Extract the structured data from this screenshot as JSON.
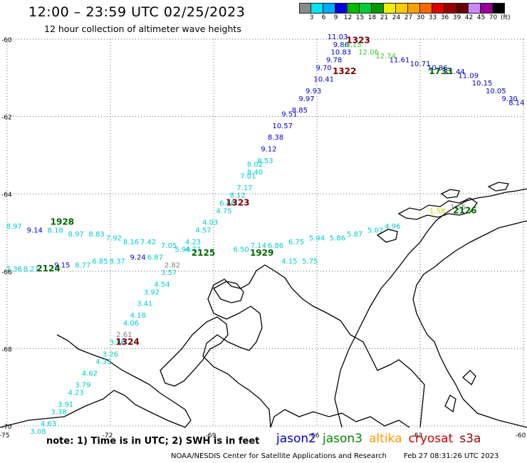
{
  "title": "12:00 – 23:59 UTC 02/25/2023",
  "subtitle": "12 hour collection of altimeter wave heights",
  "colorbar": {
    "labels": [
      "3",
      "6",
      "9",
      "12",
      "15",
      "18",
      "21",
      "24",
      "27",
      "30",
      "33",
      "36",
      "39",
      "42",
      "45",
      "70"
    ],
    "unit": "(ft)",
    "colors": [
      "#8a8a8a",
      "#00e5ee",
      "#00aaff",
      "#0000dd",
      "#00bb00",
      "#00cc33",
      "#009900",
      "#eeee00",
      "#ffcc00",
      "#ffa000",
      "#ff6600",
      "#dd0000",
      "#990000",
      "#660000",
      "#cc88ff",
      "#990099",
      "#000000"
    ]
  },
  "axes": {
    "lon_labels": [
      "-75",
      "-72",
      "-69",
      "-66",
      "-63",
      "-60"
    ],
    "lat_labels": [
      "-60",
      "-62",
      "-64",
      "-66",
      "-68",
      "-70"
    ],
    "lon_range": [
      -75,
      -60
    ],
    "lat_range": [
      -70,
      -60
    ]
  },
  "passes": [
    {
      "label": "1323",
      "color": "#7a0000",
      "lon": -64.8,
      "lat": -60.1
    },
    {
      "label": "1322",
      "color": "#7a0000",
      "lon": -65.2,
      "lat": -60.9
    },
    {
      "label": "1733",
      "color": "#006600",
      "lon": -62.4,
      "lat": -60.9
    },
    {
      "label": "1323",
      "color": "#7a0000",
      "lon": -68.3,
      "lat": -64.3
    },
    {
      "label": "2126",
      "color": "#006600",
      "lon": -61.7,
      "lat": -64.5
    },
    {
      "label": "1928",
      "color": "#006600",
      "lon": -73.4,
      "lat": -64.8
    },
    {
      "label": "2125",
      "color": "#006600",
      "lon": -69.3,
      "lat": -65.6
    },
    {
      "label": "1929",
      "color": "#006600",
      "lon": -67.6,
      "lat": -65.6
    },
    {
      "label": "2124",
      "color": "#006600",
      "lon": -73.8,
      "lat": -66.0
    },
    {
      "label": "1324",
      "color": "#7a0000",
      "lon": -71.5,
      "lat": -67.9
    }
  ],
  "wave_heights": [
    {
      "v": "11.03",
      "c": "#0000cc",
      "lon": -65.4,
      "lat": -60.0
    },
    {
      "v": "9.86",
      "c": "#0000cc",
      "lon": -65.3,
      "lat": -60.2
    },
    {
      "v": "10.83",
      "c": "#0000cc",
      "lon": -65.3,
      "lat": -60.4
    },
    {
      "v": "9.78",
      "c": "#0000cc",
      "lon": -65.5,
      "lat": -60.6
    },
    {
      "v": "9.70",
      "c": "#0000cc",
      "lon": -65.8,
      "lat": -60.8
    },
    {
      "v": "10.41",
      "c": "#0000cc",
      "lon": -65.8,
      "lat": -61.1
    },
    {
      "v": "9.93",
      "c": "#0000cc",
      "lon": -66.1,
      "lat": -61.4
    },
    {
      "v": "9.97",
      "c": "#0000cc",
      "lon": -66.3,
      "lat": -61.6
    },
    {
      "v": "8.85",
      "c": "#0000cc",
      "lon": -66.5,
      "lat": -61.9
    },
    {
      "v": "9.51",
      "c": "#0000cc",
      "lon": -66.8,
      "lat": -62.0
    },
    {
      "v": "10.57",
      "c": "#0000cc",
      "lon": -67.0,
      "lat": -62.3
    },
    {
      "v": "8.38",
      "c": "#0000cc",
      "lon": -67.2,
      "lat": -62.6
    },
    {
      "v": "9.12",
      "c": "#0000cc",
      "lon": -67.4,
      "lat": -62.9
    },
    {
      "v": "8.53",
      "c": "#00cccc",
      "lon": -67.5,
      "lat": -63.2
    },
    {
      "v": "8.02",
      "c": "#00cccc",
      "lon": -67.8,
      "lat": -63.3
    },
    {
      "v": "8.40",
      "c": "#00cccc",
      "lon": -67.8,
      "lat": -63.5
    },
    {
      "v": "7.01",
      "c": "#00cccc",
      "lon": -68.0,
      "lat": -63.6
    },
    {
      "v": "7.17",
      "c": "#00cccc",
      "lon": -68.1,
      "lat": -63.9
    },
    {
      "v": "8.12",
      "c": "#00cccc",
      "lon": -68.3,
      "lat": -64.1
    },
    {
      "v": "6.66",
      "c": "#00cccc",
      "lon": -68.6,
      "lat": -64.3
    },
    {
      "v": "4.75",
      "c": "#00cccc",
      "lon": -68.7,
      "lat": -64.5
    },
    {
      "v": "4.03",
      "c": "#00cccc",
      "lon": -69.1,
      "lat": -64.8
    },
    {
      "v": "4.57",
      "c": "#00cccc",
      "lon": -69.3,
      "lat": -65.0
    },
    {
      "v": "4.23",
      "c": "#00cccc",
      "lon": -69.6,
      "lat": -65.3
    },
    {
      "v": "5.94",
      "c": "#00cccc",
      "lon": -69.9,
      "lat": -65.5
    },
    {
      "v": "4.77",
      "c": "#00cccc",
      "lon": -69.6,
      "lat": -65.5
    },
    {
      "v": "7.05",
      "c": "#00cccc",
      "lon": -70.3,
      "lat": -65.4
    },
    {
      "v": "2.82",
      "c": "#808080",
      "lon": -70.2,
      "lat": -65.9
    },
    {
      "v": "3.57",
      "c": "#00cccc",
      "lon": -70.3,
      "lat": -66.1
    },
    {
      "v": "4.54",
      "c": "#00cccc",
      "lon": -70.5,
      "lat": -66.4
    },
    {
      "v": "3.92",
      "c": "#00cccc",
      "lon": -70.8,
      "lat": -66.6
    },
    {
      "v": "3.41",
      "c": "#00cccc",
      "lon": -71.0,
      "lat": -66.9
    },
    {
      "v": "4.18",
      "c": "#00cccc",
      "lon": -71.2,
      "lat": -67.2
    },
    {
      "v": "4.06",
      "c": "#00cccc",
      "lon": -71.4,
      "lat": -67.4
    },
    {
      "v": "2.61",
      "c": "#808080",
      "lon": -71.6,
      "lat": -67.7
    },
    {
      "v": "3.96",
      "c": "#00cccc",
      "lon": -71.8,
      "lat": -67.9
    },
    {
      "v": "3.26",
      "c": "#00cccc",
      "lon": -72.0,
      "lat": -68.2
    },
    {
      "v": "4.33",
      "c": "#00cccc",
      "lon": -72.2,
      "lat": -68.4
    },
    {
      "v": "4.62",
      "c": "#00cccc",
      "lon": -72.6,
      "lat": -68.7
    },
    {
      "v": "3.79",
      "c": "#00cccc",
      "lon": -72.8,
      "lat": -69.0
    },
    {
      "v": "4.23",
      "c": "#00cccc",
      "lon": -73.0,
      "lat": -69.2
    },
    {
      "v": "3.91",
      "c": "#00cccc",
      "lon": -73.3,
      "lat": -69.5
    },
    {
      "v": "3.38",
      "c": "#00cccc",
      "lon": -73.5,
      "lat": -69.7
    },
    {
      "v": "4.63",
      "c": "#00cccc",
      "lon": -73.8,
      "lat": -70.0
    },
    {
      "v": "3.08",
      "c": "#00cccc",
      "lon": -74.1,
      "lat": -70.2
    },
    {
      "v": "8.97",
      "c": "#00cccc",
      "lon": -74.8,
      "lat": -64.9
    },
    {
      "v": "9.14",
      "c": "#0000cc",
      "lon": -74.2,
      "lat": -65.0
    },
    {
      "v": "8.18",
      "c": "#00cccc",
      "lon": -73.6,
      "lat": -65.0
    },
    {
      "v": "8.97",
      "c": "#00cccc",
      "lon": -73.0,
      "lat": -65.1
    },
    {
      "v": "8.83",
      "c": "#00cccc",
      "lon": -72.4,
      "lat": -65.1
    },
    {
      "v": "7.92",
      "c": "#00cccc",
      "lon": -71.9,
      "lat": -65.2
    },
    {
      "v": "8.16",
      "c": "#00cccc",
      "lon": -71.4,
      "lat": -65.3
    },
    {
      "v": "7.42",
      "c": "#00cccc",
      "lon": -70.9,
      "lat": -65.3
    },
    {
      "v": "7.36",
      "c": "#00cccc",
      "lon": -74.8,
      "lat": -66.0
    },
    {
      "v": "8.21",
      "c": "#00cccc",
      "lon": -74.3,
      "lat": -66.0
    },
    {
      "v": "9.15",
      "c": "#0000cc",
      "lon": -73.4,
      "lat": -65.9
    },
    {
      "v": "8.77",
      "c": "#00cccc",
      "lon": -72.8,
      "lat": -65.9
    },
    {
      "v": "6.85",
      "c": "#00cccc",
      "lon": -72.3,
      "lat": -65.8
    },
    {
      "v": "8.37",
      "c": "#00cccc",
      "lon": -71.8,
      "lat": -65.8
    },
    {
      "v": "9.24",
      "c": "#0000cc",
      "lon": -71.2,
      "lat": -65.7
    },
    {
      "v": "6.87",
      "c": "#00cccc",
      "lon": -70.7,
      "lat": -65.7
    },
    {
      "v": "6.50",
      "c": "#00cccc",
      "lon": -68.2,
      "lat": -65.5
    },
    {
      "v": "7.14",
      "c": "#00cccc",
      "lon": -67.7,
      "lat": -65.4
    },
    {
      "v": "6.86",
      "c": "#00cccc",
      "lon": -67.2,
      "lat": -65.4
    },
    {
      "v": "6.75",
      "c": "#00cccc",
      "lon": -66.6,
      "lat": -65.3
    },
    {
      "v": "5.94",
      "c": "#00cccc",
      "lon": -66.0,
      "lat": -65.2
    },
    {
      "v": "5.86",
      "c": "#00cccc",
      "lon": -65.4,
      "lat": -65.2
    },
    {
      "v": "5.87",
      "c": "#00cccc",
      "lon": -64.9,
      "lat": -65.1
    },
    {
      "v": "5.07",
      "c": "#00cccc",
      "lon": -64.3,
      "lat": -65.0
    },
    {
      "v": "4.96",
      "c": "#00cccc",
      "lon": -63.8,
      "lat": -64.9
    },
    {
      "v": "4.15",
      "c": "#00cccc",
      "lon": -66.8,
      "lat": -65.8
    },
    {
      "v": "5.75",
      "c": "#00cccc",
      "lon": -66.2,
      "lat": -65.8
    },
    {
      "v": "11.61",
      "c": "#0000cc",
      "lon": -63.6,
      "lat": -60.6
    },
    {
      "v": "10.71",
      "c": "#0000cc",
      "lon": -63.0,
      "lat": -60.7
    },
    {
      "v": "10.86",
      "c": "#0000cc",
      "lon": -62.5,
      "lat": -60.8
    },
    {
      "v": "11.44",
      "c": "#0000cc",
      "lon": -62.0,
      "lat": -60.9
    },
    {
      "v": "11.09",
      "c": "#0000cc",
      "lon": -61.6,
      "lat": -61.0
    },
    {
      "v": "10.15",
      "c": "#0000cc",
      "lon": -61.2,
      "lat": -61.2
    },
    {
      "v": "10.05",
      "c": "#0000cc",
      "lon": -60.8,
      "lat": -61.4
    },
    {
      "v": "9.30",
      "c": "#0000cc",
      "lon": -60.4,
      "lat": -61.6
    },
    {
      "v": "8.14",
      "c": "#0000cc",
      "lon": -60.2,
      "lat": -61.7
    },
    {
      "v": "13.15",
      "c": "#33cc33",
      "lon": -65.0,
      "lat": -60.2
    },
    {
      "v": "12.06",
      "c": "#33cc33",
      "lon": -64.5,
      "lat": -60.4
    },
    {
      "v": "12.74",
      "c": "#33cc33",
      "lon": -64.0,
      "lat": -60.5
    },
    {
      "v": "1.55",
      "c": "#888888",
      "lon": -61.9,
      "lat": -64.4
    },
    {
      "v": "1.58",
      "c": "#cccc00",
      "lon": -62.5,
      "lat": -64.5
    }
  ],
  "note": "note:  1) Time is in UTC;  2) SWH is in feet",
  "satellites": [
    {
      "name": "jason2",
      "color": "#0000cc"
    },
    {
      "name": "jason3",
      "color": "#008800"
    },
    {
      "name": "altika",
      "color": "#ff9900"
    },
    {
      "name": "cryosat",
      "color": "#cc0000"
    },
    {
      "name": "s3a",
      "color": "#990000"
    }
  ],
  "credit": "NOAA/NESDIS Center for Satellite Applications and Research",
  "timestamp": "Feb 27 08:31:26 UTC 2023"
}
